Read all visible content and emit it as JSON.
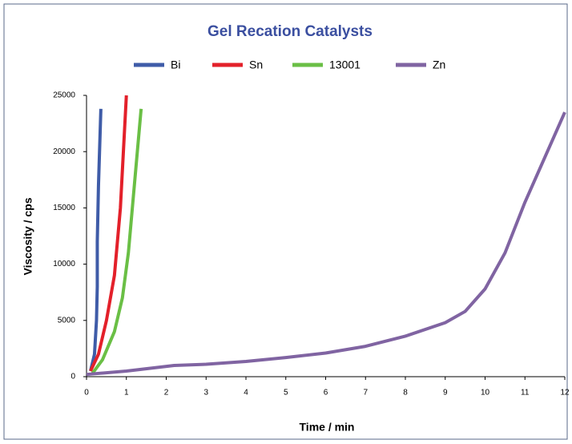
{
  "chart_data": {
    "type": "line",
    "title": "Gel Recation Catalysts",
    "x_label": "Time / min",
    "y_label": "Viscosity / cps",
    "xlim": [
      0,
      12
    ],
    "xticks": [
      0,
      1,
      2,
      3,
      4,
      5,
      6,
      7,
      8,
      9,
      10,
      11,
      12
    ],
    "ylim": [
      0,
      25000
    ],
    "yticks": [
      0,
      5000,
      10000,
      15000,
      20000,
      25000
    ],
    "grid": false,
    "legend": "top",
    "series": [
      {
        "name": "Bi",
        "color": "#3f5ca8",
        "x": [
          0.1,
          0.2,
          0.25,
          0.27,
          0.27,
          0.3,
          0.36
        ],
        "values": [
          500,
          2000,
          5000,
          8000,
          12000,
          17000,
          23800
        ]
      },
      {
        "name": "Sn",
        "color": "#e3202a",
        "x": [
          0.1,
          0.3,
          0.5,
          0.7,
          0.85,
          1.0
        ],
        "values": [
          500,
          2000,
          5000,
          9000,
          15000,
          25000
        ]
      },
      {
        "name": "13001",
        "color": "#6abf45",
        "x": [
          0.15,
          0.4,
          0.7,
          0.9,
          1.05,
          1.2,
          1.37
        ],
        "values": [
          300,
          1500,
          4000,
          7000,
          11000,
          17000,
          23800
        ]
      },
      {
        "name": "Zn",
        "color": "#8064a2",
        "x": [
          0,
          1,
          2.2,
          3,
          4,
          5,
          6,
          7,
          8,
          9,
          9.5,
          10,
          10.5,
          11,
          12
        ],
        "values": [
          200,
          500,
          1000,
          1100,
          1350,
          1700,
          2100,
          2700,
          3600,
          4800,
          5800,
          7800,
          11000,
          15500,
          23500
        ]
      }
    ]
  }
}
